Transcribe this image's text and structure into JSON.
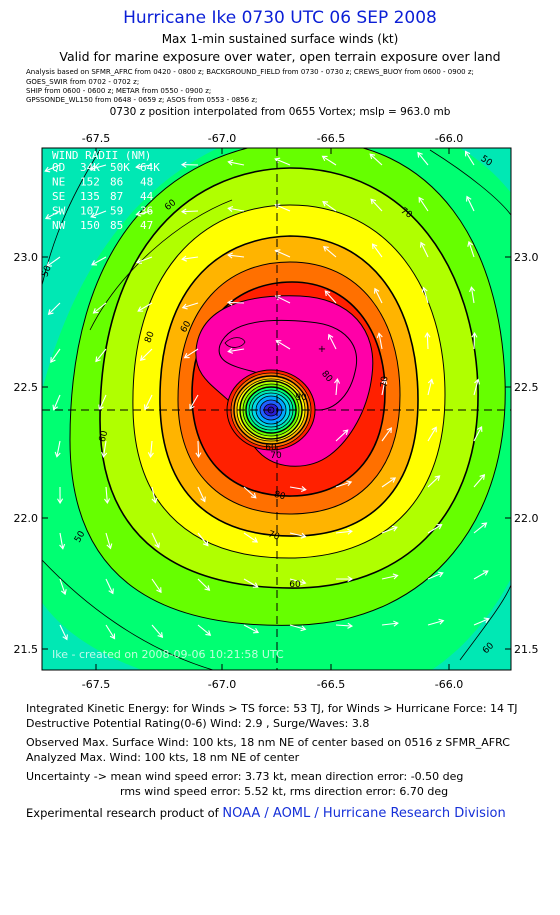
{
  "title": "Hurricane Ike 0730 UTC 06 SEP 2008",
  "subtitle1": "Max 1-min sustained surface winds (kt)",
  "subtitle2": "Valid for marine exposure over water, open terrain exposure over land",
  "sources": [
    "Analysis based on  SFMR_AFRC  from 0420 - 0800 z;  BACKGROUND_FIELD from 0730 - 0730 z;  CREWS_BUOY from 0600 - 0900 z;",
    "GOES_SWIR from 0702 - 0702 z;",
    "SHIP from 0600 - 0600 z;   METAR from 0550 - 0900 z;",
    "GPSSONDE_WL150 from 0648 - 0659 z;   ASOS from 0553 - 0856 z;"
  ],
  "position_note": "0730 z position interpolated from 0655 Vortex; mslp = 963.0 mb",
  "map": {
    "lon_ticks": [
      "-67.5",
      "-67.0",
      "-66.5",
      "-66.0"
    ],
    "lat_ticks": [
      "23.0",
      "22.5",
      "22.0",
      "21.5"
    ],
    "extent": {
      "lon": [
        -67.7,
        -65.77
      ],
      "lat": [
        21.35,
        23.42
      ]
    },
    "center": {
      "lon": -66.7,
      "lat": 22.41
    },
    "contour_labels": [
      "50",
      "60",
      "70",
      "80",
      "60",
      "50",
      "60",
      "70",
      "80",
      "90",
      "70",
      "60",
      "50",
      "60",
      "70",
      "80",
      "60"
    ],
    "wind_radii": {
      "title": "WIND RADII (NM)",
      "header": [
        "QD",
        "34K",
        "50K",
        "64K"
      ],
      "rows": [
        [
          "NE",
          "152",
          "86",
          "48"
        ],
        [
          "SE",
          "135",
          "87",
          "44"
        ],
        [
          "SW",
          "107",
          "59",
          "36"
        ],
        [
          "NW",
          "150",
          "85",
          "47"
        ]
      ]
    },
    "watermark": "Ike - created on 2008-09-06 10:21:58 UTC",
    "colors": [
      "#00e8b4",
      "#00ff72",
      "#66ff00",
      "#b0ff00",
      "#ffff00",
      "#ffb400",
      "#ff7000",
      "#ff2000",
      "#ff00a8"
    ]
  },
  "footer": {
    "ike_line": "Integrated Kinetic Energy:  for Winds > TS force: 53 TJ,  for Winds > Hurricane Force: 14 TJ",
    "dpr_line": "Destructive Potential Rating(0-6)   Wind: 2.9 , Surge/Waves: 3.8",
    "observed_line": "Observed Max. Surface Wind: 100 kts, 18 nm NE of center based on 0516 z SFMR_AFRC",
    "analyzed_line": "Analyzed Max. Wind: 100 kts, 18 nm NE of center",
    "uncertainty_line1": "Uncertainty -> mean wind speed error: 3.73 kt,   mean direction error:  -0.50 deg",
    "uncertainty_line2": "rms wind speed error: 5.52 kt,   rms direction error: 6.70 deg",
    "credit_prefix": "Experimental research product of ",
    "credit_org": "NOAA / AOML / Hurricane Research Division"
  }
}
